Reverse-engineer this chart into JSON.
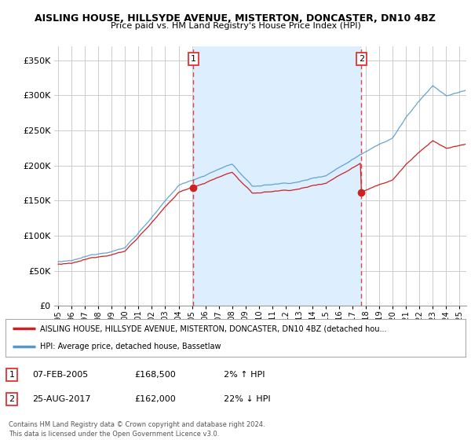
{
  "title": "AISLING HOUSE, HILLSYDE AVENUE, MISTERTON, DONCASTER, DN10 4BZ",
  "subtitle": "Price paid vs. HM Land Registry's House Price Index (HPI)",
  "ylabel_ticks": [
    "£0",
    "£50K",
    "£100K",
    "£150K",
    "£200K",
    "£250K",
    "£300K",
    "£350K"
  ],
  "ytick_values": [
    0,
    50000,
    100000,
    150000,
    200000,
    250000,
    300000,
    350000
  ],
  "ylim": [
    0,
    370000
  ],
  "xlim_start": 1994.7,
  "xlim_end": 2025.5,
  "sale1_x": 2005.1,
  "sale1_y": 168500,
  "sale1_label": "1",
  "sale2_x": 2017.65,
  "sale2_y": 162000,
  "sale2_label": "2",
  "vline_color": "#dd3333",
  "hpi_line_color": "#5599cc",
  "sale_line_color": "#cc2222",
  "shade_color": "#ddeeff",
  "background_color": "#ffffff",
  "grid_color": "#cccccc",
  "legend_line1": "AISLING HOUSE, HILLSYDE AVENUE, MISTERTON, DONCASTER, DN10 4BZ (detached hou...",
  "legend_line2": "HPI: Average price, detached house, Bassetlaw",
  "table_row1": [
    "1",
    "07-FEB-2005",
    "£168,500",
    "2% ↑ HPI"
  ],
  "table_row2": [
    "2",
    "25-AUG-2017",
    "£162,000",
    "22% ↓ HPI"
  ],
  "footer": "Contains HM Land Registry data © Crown copyright and database right 2024.\nThis data is licensed under the Open Government Licence v3.0.",
  "xtick_years": [
    1995,
    1996,
    1997,
    1998,
    1999,
    2000,
    2001,
    2002,
    2003,
    2004,
    2005,
    2006,
    2007,
    2008,
    2009,
    2010,
    2011,
    2012,
    2013,
    2014,
    2015,
    2016,
    2017,
    2018,
    2019,
    2020,
    2021,
    2022,
    2023,
    2024,
    2025
  ]
}
